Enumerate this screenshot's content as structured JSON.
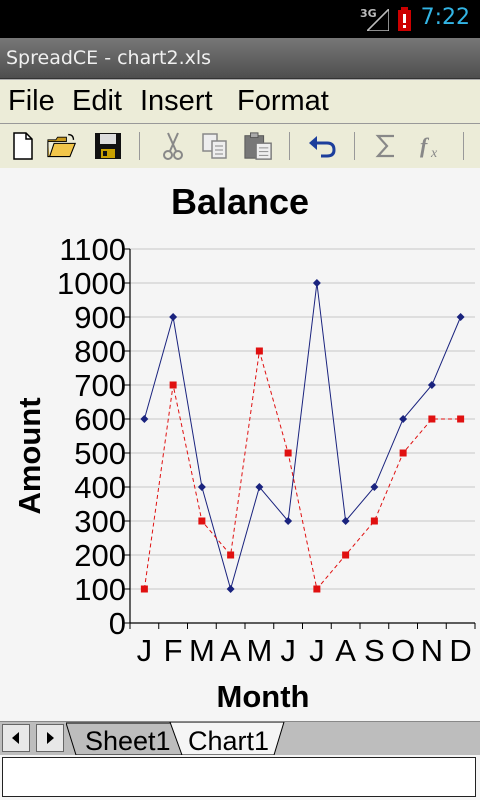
{
  "status": {
    "time": "7:22",
    "network": "3G"
  },
  "app": {
    "title": "SpreadCE - chart2.xls"
  },
  "menu": {
    "file": "File",
    "edit": "Edit",
    "insert": "Insert",
    "format": "Format"
  },
  "toolbar": {
    "icons": [
      "new-file-icon",
      "open-folder-icon",
      "save-icon",
      "cut-icon",
      "copy-icon",
      "paste-icon",
      "undo-icon",
      "sum-icon",
      "function-icon"
    ]
  },
  "tabs": {
    "sheet1": "Sheet1",
    "chart1": "Chart1"
  },
  "formula": {
    "value": ""
  },
  "colors": {
    "series1": "#1a237e",
    "series2": "#e01010",
    "accent": "#33b5e5"
  },
  "chart_data": {
    "type": "line",
    "title": "Balance",
    "xlabel": "Month",
    "ylabel": "Amount",
    "categories": [
      "J",
      "F",
      "M",
      "A",
      "M",
      "J",
      "J",
      "A",
      "S",
      "O",
      "N",
      "D"
    ],
    "ylim": [
      0,
      1100
    ],
    "yticks": [
      0,
      100,
      200,
      300,
      400,
      500,
      600,
      700,
      800,
      900,
      1000,
      1100
    ],
    "grid": true,
    "legend": "none",
    "series": [
      {
        "values": [
          600,
          900,
          400,
          100,
          400,
          300,
          1000,
          300,
          400,
          600,
          700,
          900
        ],
        "color": "#1a237e",
        "style": "solid",
        "marker": "diamond"
      },
      {
        "values": [
          100,
          700,
          300,
          200,
          800,
          500,
          100,
          200,
          300,
          500,
          600,
          600
        ],
        "color": "#e01010",
        "style": "dashed",
        "marker": "square"
      }
    ]
  }
}
